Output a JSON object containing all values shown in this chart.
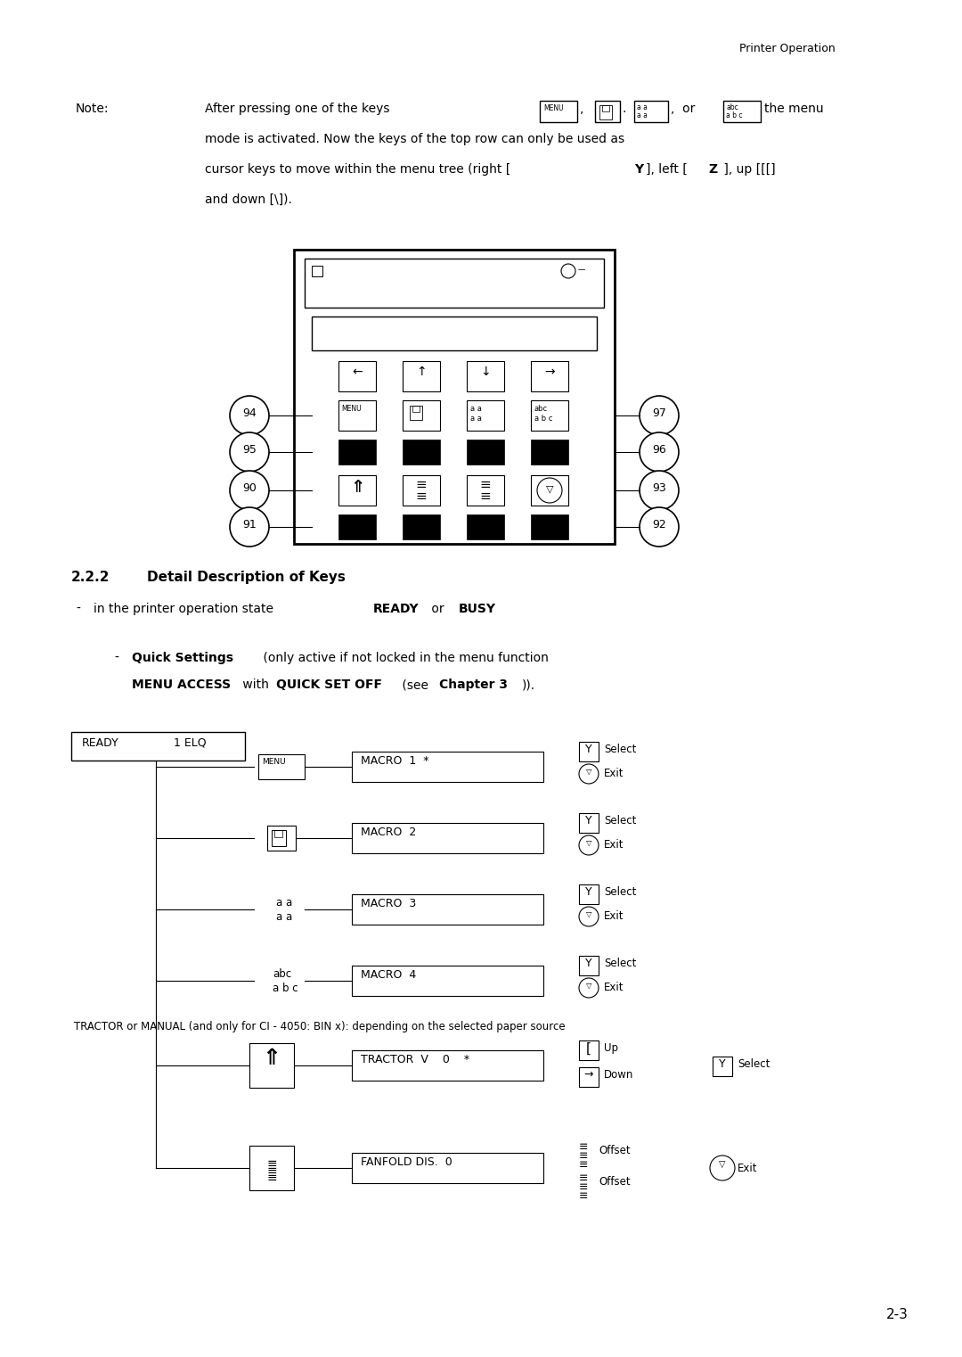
{
  "page_header": "Printer Operation",
  "note_label": "Note:",
  "page_number": "2-3",
  "tractor_note": "TRACTOR or MANUAL (and only for CI - 4050: BIN x): depending on the selected paper source",
  "bg_color": "#ffffff"
}
